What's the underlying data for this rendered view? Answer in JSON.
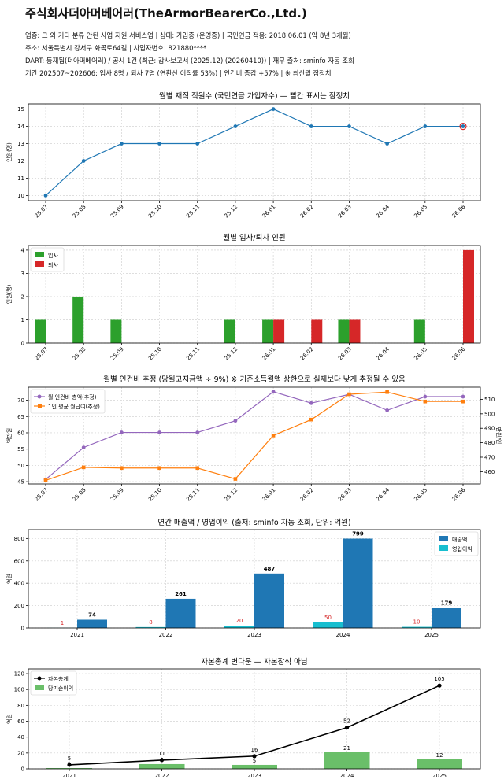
{
  "company": {
    "name": "주식회사더아머베어러(TheArmorBearerCo.,Ltd.)",
    "lines": [
      "업종: 그 외 기타 분류 안된 사업 지원 서비스업   |   상태: 가입중 (운영중)   |   국민연금 적용: 2018.06.01 (약 8년 3개월)",
      "주소: 서울특별시 강서구 화곡로64길   |   사업자번호: 821880****",
      "DART: 등재됨(더아머베어러) / 공시 1건 (최근: 감사보고서 (2025.12) (20260410))   |   재무 출처: sminfo 자동 조회",
      "기간 202507~202606: 입사 8명 / 퇴사 7명 (연환산 이직률 53%)   |   인건비 증감 +57%   |   ※ 최신월 잠정치"
    ]
  },
  "chart_data": [
    {
      "type": "line",
      "title": "월별 재직 직원수 (국민연금 가입자수) — 빨간 표시는 잠정치",
      "ylabel": "인원(명)",
      "categories": [
        "25.07",
        "25.08",
        "25.09",
        "25.10",
        "25.11",
        "25.12",
        "26.01",
        "26.02",
        "26.03",
        "26.04",
        "26.05",
        "26.06"
      ],
      "series": [
        {
          "values": [
            10,
            12,
            13,
            13,
            13,
            14,
            15,
            14,
            14,
            13,
            14,
            14
          ],
          "color": "#1f77b4"
        }
      ],
      "provisional_index": 11,
      "provisional_color": "#d62728",
      "ylim": [
        9.7,
        15.3
      ],
      "yticks": [
        10,
        11,
        12,
        13,
        14,
        15
      ],
      "grid": true
    },
    {
      "type": "bar",
      "title": "월별 입사/퇴사 인원",
      "ylabel": "인원(명)",
      "categories": [
        "25.07",
        "25.08",
        "25.09",
        "25.10",
        "25.11",
        "25.12",
        "26.01",
        "26.02",
        "26.03",
        "26.04",
        "26.05",
        "26.06"
      ],
      "series": [
        {
          "name": "입사",
          "values": [
            1,
            2,
            1,
            0,
            0,
            1,
            1,
            0,
            1,
            0,
            1,
            0
          ],
          "color": "#2ca02c"
        },
        {
          "name": "퇴사",
          "values": [
            0,
            0,
            0,
            0,
            0,
            0,
            1,
            1,
            1,
            0,
            0,
            4
          ],
          "color": "#d62728"
        }
      ],
      "ylim": [
        0,
        4.2
      ],
      "yticks": [
        0,
        1,
        2,
        3,
        4
      ],
      "legend": "top-left",
      "grid": true
    },
    {
      "type": "line",
      "title": "월별 인건비 추정 (당월고지금액 ÷ 9%) ※ 기준소득월액 상한으로 실제보다 낮게 추정될 수 있음",
      "ylabel": "백만원",
      "y2label": "만원/인",
      "categories": [
        "25.07",
        "25.08",
        "25.09",
        "25.10",
        "25.11",
        "25.12",
        "26.01",
        "26.02",
        "26.03",
        "26.04",
        "26.05",
        "26.06"
      ],
      "series": [
        {
          "name": "월 인건비 총액(추정)",
          "axis": "left",
          "values": [
            45.7,
            55.5,
            60.1,
            60.1,
            60.1,
            63.7,
            72.6,
            69.1,
            71.8,
            66.9,
            71.1,
            71.1
          ],
          "color": "#9467bd",
          "marker": "circle"
        },
        {
          "name": "1인 평균 월급여(추정)",
          "axis": "right",
          "values": [
            454,
            463,
            462.5,
            462.5,
            462.5,
            455,
            485,
            496,
            513.5,
            515,
            508.5,
            508.5
          ],
          "color": "#ff7f0e",
          "marker": "square"
        }
      ],
      "ylim": [
        44.3,
        74.0
      ],
      "yticks": [
        45,
        50,
        55,
        60,
        65,
        70
      ],
      "y2lim": [
        451.5,
        518.4
      ],
      "y2ticks": [
        460,
        470,
        480,
        490,
        500,
        510
      ],
      "legend": "top-left",
      "grid": true
    },
    {
      "type": "bar",
      "title": "연간 매출액 / 영업이익 (출처: sminfo 자동 조회, 단위: 억원)",
      "ylabel": "억원",
      "categories": [
        "2021",
        "2022",
        "2023",
        "2024",
        "2025"
      ],
      "series": [
        {
          "name": "매출액",
          "values": [
            74,
            261,
            487,
            799,
            179
          ],
          "color": "#1f77b4"
        },
        {
          "name": "영업이익",
          "values": [
            1,
            8,
            20,
            50,
            10
          ],
          "color": "#17becf"
        }
      ],
      "ylim": [
        0,
        880
      ],
      "yticks": [
        0,
        200,
        400,
        600,
        800
      ],
      "legend": "top-right",
      "grid": true
    },
    {
      "type": "bar",
      "title": "자본총계 변다운 — 자본잠식 아님",
      "ylabel": "억원",
      "categories": [
        "2021",
        "2022",
        "2023",
        "2024",
        "2025"
      ],
      "series": [
        {
          "name": "자본총계",
          "kind": "line",
          "values": [
            5,
            11,
            16,
            52,
            105
          ],
          "color": "#000000"
        },
        {
          "name": "당기순이익",
          "kind": "bar",
          "values": [
            1,
            6,
            5,
            21,
            12
          ],
          "color": "#6abf69"
        }
      ],
      "ylim": [
        0,
        126
      ],
      "yticks": [
        0,
        20,
        40,
        60,
        80,
        100,
        120
      ],
      "legend": "top-left",
      "grid": true
    }
  ]
}
